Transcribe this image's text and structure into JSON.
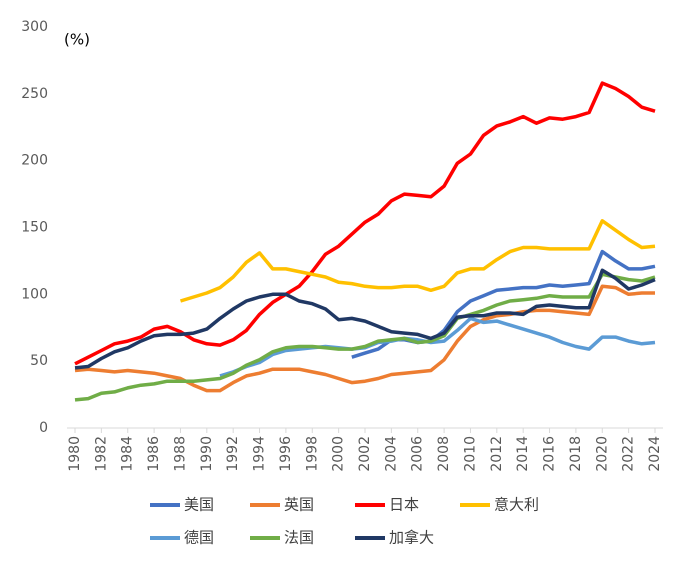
{
  "chart_data": {
    "type": "line",
    "annotation": "(%)",
    "x": [
      1980,
      1981,
      1982,
      1983,
      1984,
      1985,
      1986,
      1987,
      1988,
      1989,
      1990,
      1991,
      1992,
      1993,
      1994,
      1995,
      1996,
      1997,
      1998,
      1999,
      2000,
      2001,
      2002,
      2003,
      2004,
      2005,
      2006,
      2007,
      2008,
      2009,
      2010,
      2011,
      2012,
      2013,
      2014,
      2015,
      2016,
      2017,
      2018,
      2019,
      2020,
      2021,
      2022,
      2023,
      2024
    ],
    "xlim": [
      1980,
      2024
    ],
    "xticks": [
      1980,
      1982,
      1984,
      1986,
      1988,
      1990,
      1992,
      1994,
      1996,
      1998,
      2000,
      2002,
      2004,
      2006,
      2008,
      2010,
      2012,
      2014,
      2016,
      2018,
      2020,
      2022,
      2024
    ],
    "ylim": [
      0,
      300
    ],
    "yticks": [
      0,
      50,
      100,
      150,
      200,
      250,
      300
    ],
    "grid": false,
    "series": [
      {
        "name": "美国",
        "color": "#4472c4",
        "values": [
          null,
          null,
          null,
          null,
          null,
          null,
          null,
          null,
          null,
          null,
          null,
          null,
          null,
          null,
          null,
          null,
          null,
          null,
          null,
          null,
          null,
          53,
          56,
          59,
          66,
          66,
          64,
          65,
          73,
          87,
          95,
          99,
          103,
          104,
          105,
          105,
          107,
          106,
          107,
          108,
          132,
          125,
          119,
          119,
          121
        ]
      },
      {
        "name": "英国",
        "color": "#ed7d31",
        "values": [
          43,
          44,
          43,
          42,
          43,
          42,
          41,
          39,
          37,
          32,
          28,
          28,
          34,
          39,
          41,
          44,
          44,
          44,
          42,
          40,
          37,
          34,
          35,
          37,
          40,
          41,
          42,
          43,
          51,
          65,
          76,
          81,
          84,
          85,
          87,
          88,
          88,
          87,
          86,
          85,
          106,
          105,
          100,
          101,
          101
        ]
      },
      {
        "name": "日本",
        "color": "#ff0000",
        "values": [
          48,
          53,
          58,
          63,
          65,
          68,
          74,
          76,
          72,
          66,
          63,
          62,
          66,
          73,
          85,
          94,
          100,
          106,
          117,
          130,
          136,
          145,
          154,
          160,
          170,
          175,
          174,
          173,
          181,
          198,
          205,
          219,
          226,
          229,
          233,
          228,
          232,
          231,
          233,
          236,
          258,
          254,
          248,
          240,
          237
        ]
      },
      {
        "name": "意大利",
        "color": "#ffc000",
        "values": [
          null,
          null,
          null,
          null,
          null,
          null,
          null,
          null,
          95,
          98,
          101,
          105,
          113,
          124,
          131,
          119,
          119,
          117,
          115,
          113,
          109,
          108,
          106,
          105,
          105,
          106,
          106,
          103,
          106,
          116,
          119,
          119,
          126,
          132,
          135,
          135,
          134,
          134,
          134,
          134,
          155,
          148,
          141,
          135,
          136
        ]
      },
      {
        "name": "德国",
        "color": "#5b9bd5",
        "values": [
          null,
          null,
          null,
          null,
          null,
          null,
          null,
          null,
          null,
          null,
          null,
          39,
          42,
          46,
          49,
          55,
          58,
          59,
          60,
          61,
          60,
          59,
          60,
          64,
          65,
          67,
          66,
          64,
          65,
          73,
          82,
          79,
          80,
          77,
          74,
          71,
          68,
          64,
          61,
          59,
          68,
          68,
          65,
          63,
          64
        ]
      },
      {
        "name": "法国",
        "color": "#70ad47",
        "values": [
          21,
          22,
          26,
          27,
          30,
          32,
          33,
          35,
          35,
          35,
          36,
          37,
          41,
          47,
          51,
          57,
          60,
          61,
          61,
          60,
          59,
          59,
          61,
          65,
          66,
          67,
          64,
          65,
          69,
          82,
          85,
          88,
          92,
          95,
          96,
          97,
          99,
          98,
          98,
          98,
          115,
          113,
          111,
          110,
          113
        ]
      },
      {
        "name": "加拿大",
        "color": "#203864",
        "values": [
          45,
          46,
          52,
          57,
          60,
          65,
          69,
          70,
          70,
          71,
          74,
          82,
          89,
          95,
          98,
          100,
          100,
          95,
          93,
          89,
          81,
          82,
          80,
          76,
          72,
          71,
          70,
          67,
          71,
          83,
          84,
          84,
          86,
          86,
          85,
          91,
          92,
          91,
          90,
          90,
          118,
          112,
          104,
          107,
          111
        ]
      }
    ]
  }
}
